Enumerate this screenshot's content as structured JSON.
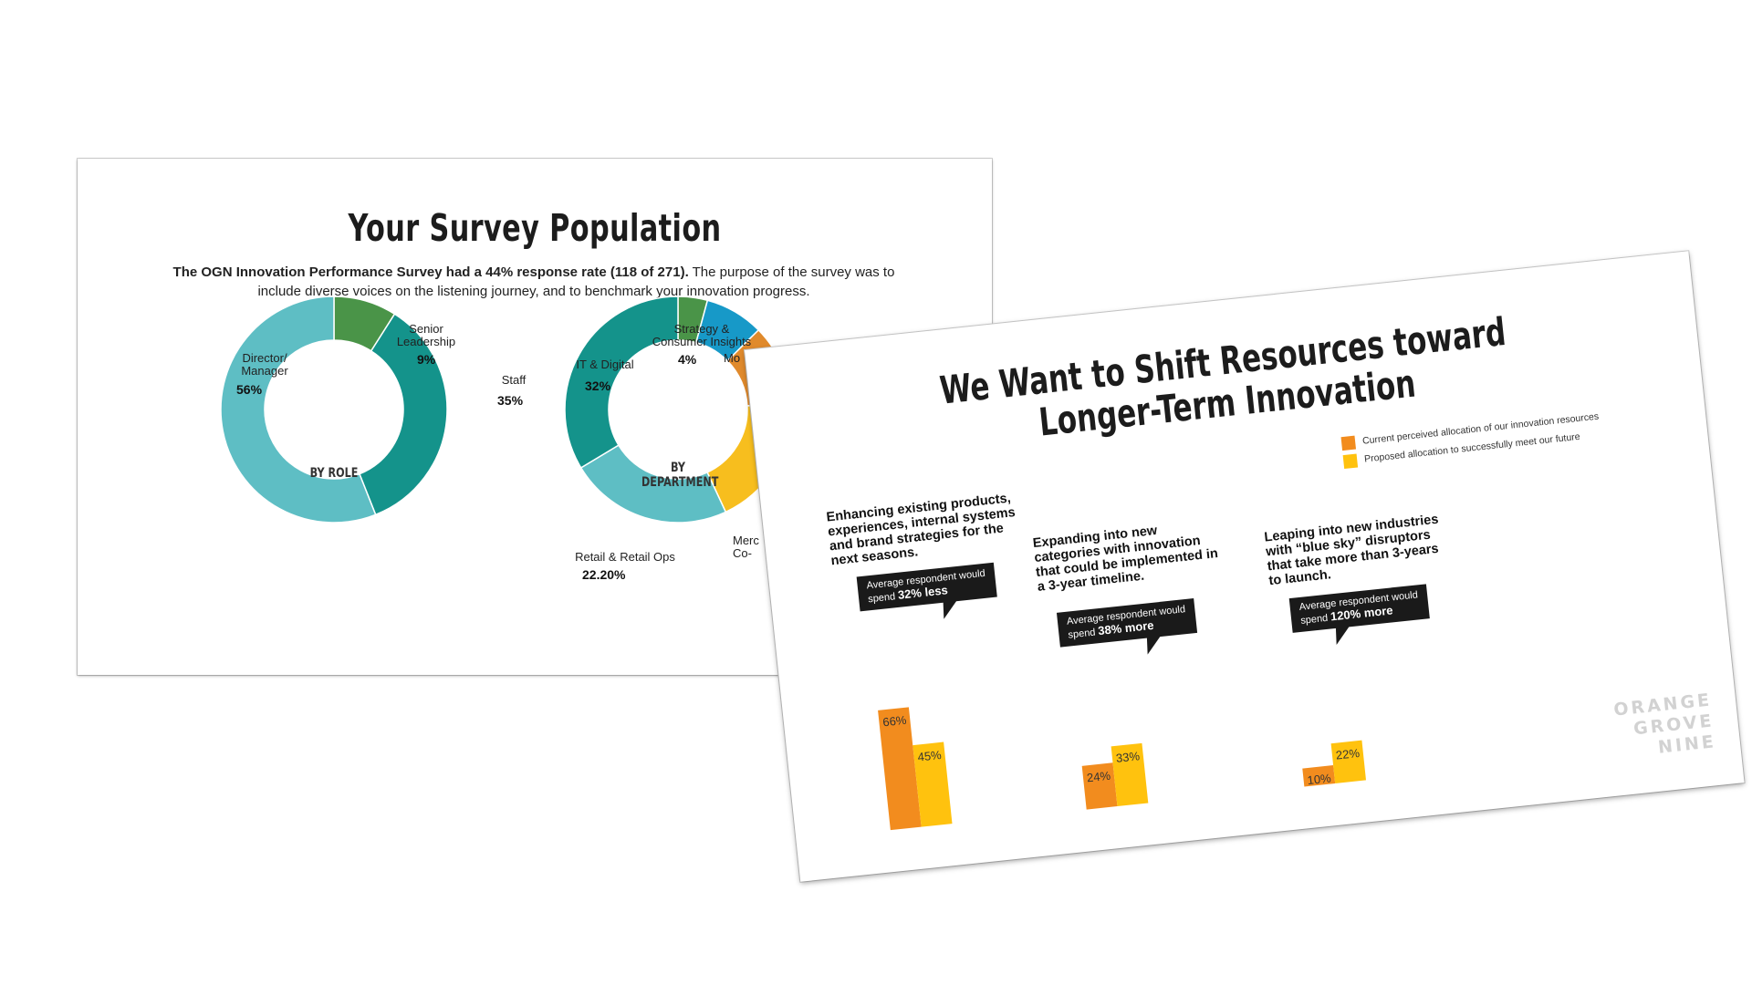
{
  "slide1": {
    "title": "Your Survey Population",
    "subtitle_bold": "The OGN Innovation Performance Survey had a 44% response rate (118 of 271).",
    "subtitle_rest": " The purpose of the survey was to include diverse voices on the listening journey, and to benchmark your innovation progress.",
    "role_center": "BY ROLE",
    "dept_center_1": "BY",
    "dept_center_2": "DEPARTMENT"
  },
  "slide2": {
    "title_line1": "We Want to Shift Resources toward",
    "title_line2": "Longer-Term Innovation",
    "legend": [
      {
        "label": "Current perceived allocation of our innovation resources",
        "color": "#F28C1E"
      },
      {
        "label": "Proposed allocation to successfully meet our future",
        "color": "#FFC20E"
      }
    ],
    "groups": [
      {
        "title_lines": [
          "Enhancing existing products,",
          "experiences, internal systems",
          "and brand strategies for the",
          "next seasons."
        ],
        "callout_line1": "Average respondent would",
        "callout_prefix": "spend ",
        "callout_emph": "32% less",
        "current_label": "66%",
        "proposed_label": "45%"
      },
      {
        "title_lines": [
          "Expanding into new",
          "categories with innovation",
          "that could be implemented in",
          "a 3-year timeline."
        ],
        "callout_line1": "Average respondent  would",
        "callout_prefix": "spend ",
        "callout_emph": "38% more",
        "current_label": "24%",
        "proposed_label": "33%"
      },
      {
        "title_lines": [
          "Leaping into new industries",
          "with “blue sky” disruptors",
          "that take more than 3-years",
          "to launch."
        ],
        "callout_line1": "Average respondent  would",
        "callout_prefix": "spend ",
        "callout_emph": "120% more",
        "current_label": "10%",
        "proposed_label": "22%"
      }
    ],
    "brand": [
      "ORANGE",
      "GROVE",
      "NINE"
    ]
  },
  "chart_data": [
    {
      "type": "pie",
      "title": "BY ROLE",
      "categories": [
        "Senior Leadership",
        "Staff",
        "Director/ Manager"
      ],
      "labels": [
        "Senior\nLeadership",
        "Staff",
        "Director/\nManager"
      ],
      "value_labels": [
        "9%",
        "35%",
        "56%"
      ],
      "values": [
        9,
        35,
        56
      ],
      "colors": [
        "#4A9448",
        "#14938B",
        "#5EBEC4"
      ]
    },
    {
      "type": "pie",
      "title": "BY DEPARTMENT",
      "categories": [
        "Strategy & Consumer Insights",
        "Mo",
        "",
        "Merc Co-",
        "Retail & Retail Ops",
        "IT & Digital"
      ],
      "labels": [
        "Strategy &\nConsumer Insights",
        "Mo",
        "",
        "Merc\nCo-",
        "Retail & Retail Ops",
        "IT & Digital"
      ],
      "value_labels": [
        "4%",
        "",
        "",
        "",
        "22.20%",
        "32%"
      ],
      "values": [
        4,
        8,
        11,
        18,
        22.2,
        32
      ],
      "colors": [
        "#4A9448",
        "#1799C8",
        "#E08A2C",
        "#F7BE1E",
        "#5EBEC4",
        "#14938B"
      ]
    },
    {
      "type": "bar",
      "categories": [
        "Enhancing existing",
        "Expanding into new categories",
        "Leaping into new industries"
      ],
      "series": [
        {
          "name": "Current perceived allocation of our innovation resources",
          "values": [
            66,
            24,
            10
          ],
          "color": "#F28C1E"
        },
        {
          "name": "Proposed allocation to successfully meet our future",
          "values": [
            45,
            33,
            22
          ],
          "color": "#FFC20E"
        }
      ]
    }
  ]
}
